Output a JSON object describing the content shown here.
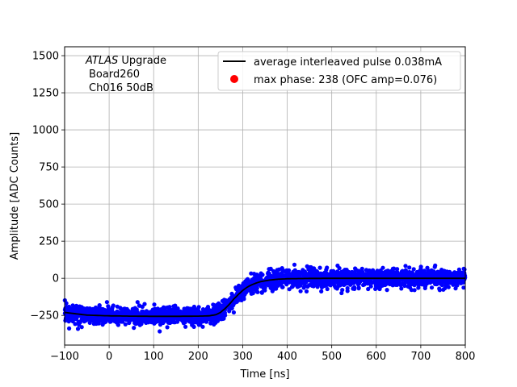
{
  "chart_data": {
    "type": "scatter",
    "xlabel": "Time [ns]",
    "ylabel": "Amplitude [ADC Counts]",
    "xlim": [
      -100,
      800
    ],
    "ylim": [
      -450,
      1560
    ],
    "x_ticks": [
      -100,
      0,
      100,
      200,
      300,
      400,
      500,
      600,
      700,
      800
    ],
    "y_ticks": [
      -250,
      0,
      250,
      500,
      750,
      1000,
      1250,
      1500
    ],
    "grid": true,
    "legend_placement": "top-right",
    "annotation": {
      "line1_italic": "ATLAS",
      "line1_rest": " Upgrade",
      "line2": "Board260",
      "line3": "Ch016 50dB"
    },
    "series": [
      {
        "name": "average interleaved pulse 0.038mA",
        "type": "line",
        "color": "#000000",
        "x": [
          -100,
          -50,
          0,
          50,
          100,
          150,
          200,
          225,
          240,
          250,
          260,
          270,
          280,
          290,
          300,
          310,
          320,
          330,
          340,
          360,
          380,
          400,
          450,
          500,
          600,
          700,
          800
        ],
        "y": [
          -230,
          -248,
          -253,
          -255,
          -256,
          -256,
          -255,
          -253,
          -245,
          -230,
          -205,
          -175,
          -140,
          -110,
          -82,
          -60,
          -44,
          -32,
          -23,
          -12,
          -6,
          -3,
          -1,
          0,
          0,
          0,
          0
        ]
      },
      {
        "name": "max phase: 238 (OFC amp=0.076)",
        "type": "scatter",
        "color": "#ff0000"
      },
      {
        "name": "",
        "type": "scatter-band",
        "color": "#0000ff",
        "noise_spread": 30,
        "outlier_range": 125
      }
    ]
  }
}
